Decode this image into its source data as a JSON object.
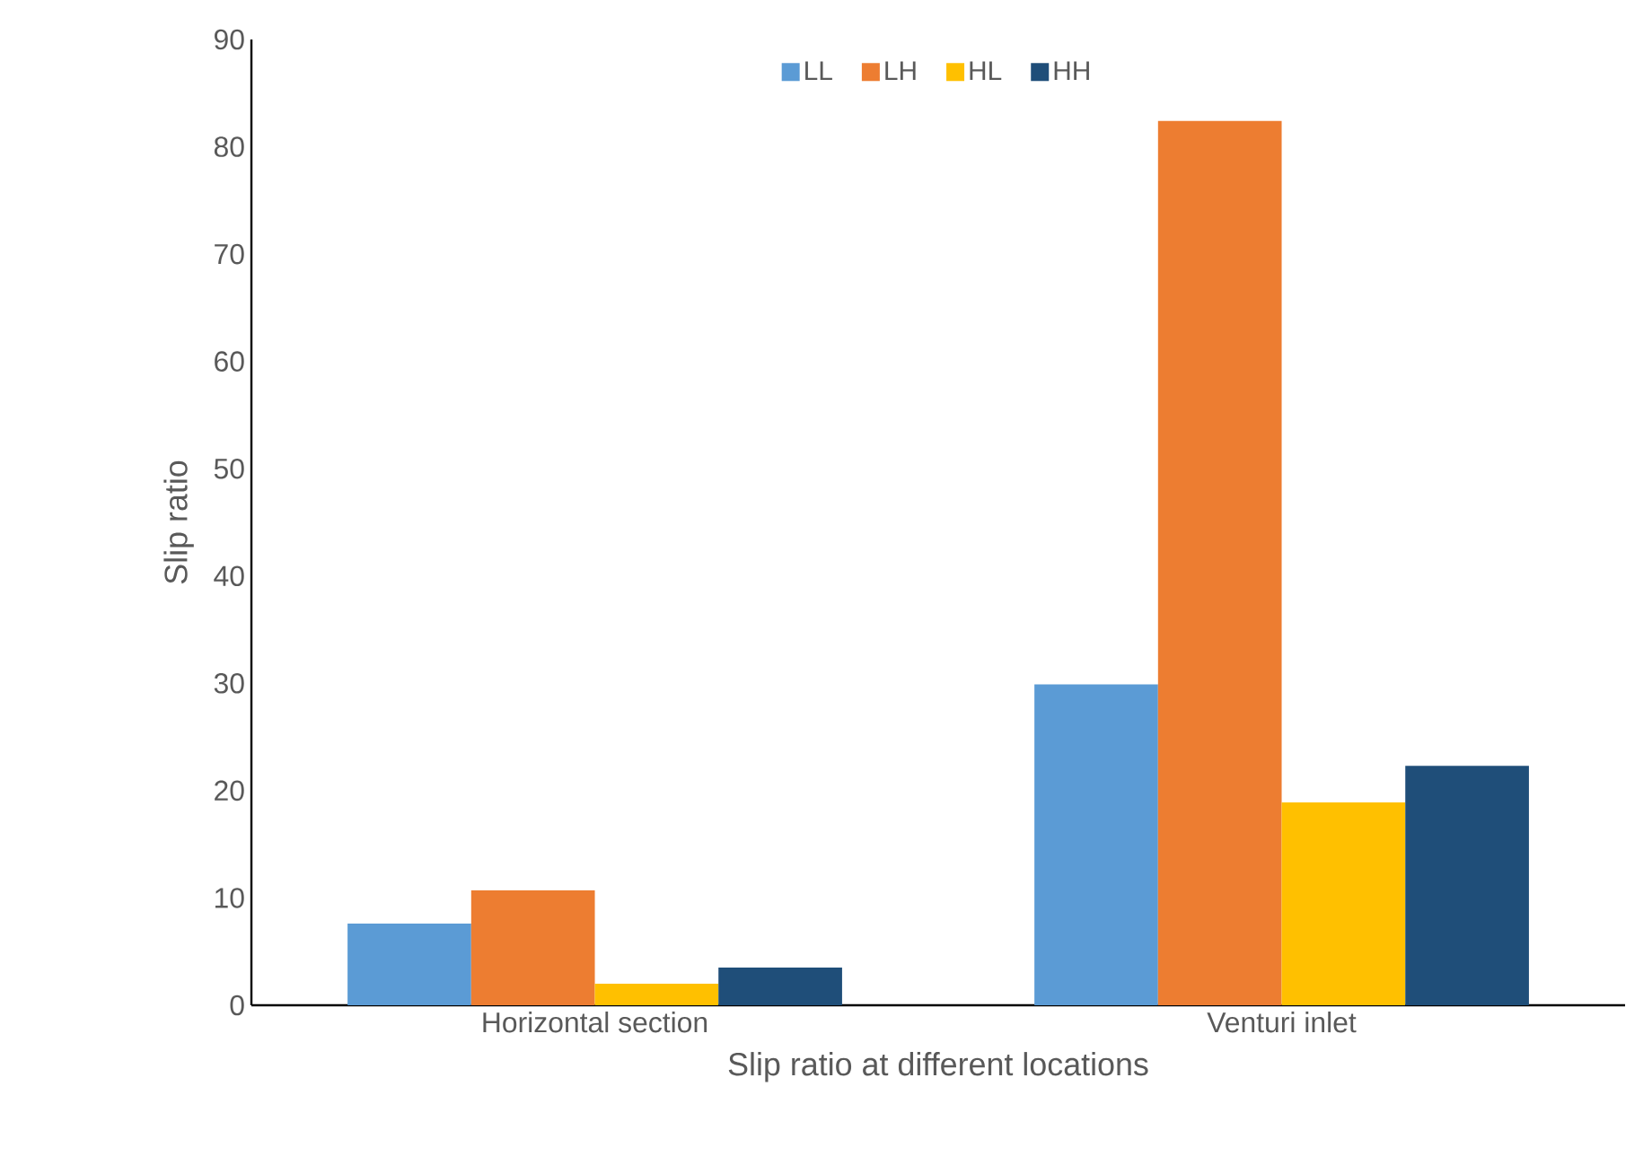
{
  "chart_data": {
    "type": "bar",
    "xlabel": "Slip ratio at different locations",
    "ylabel": "Slip ratio",
    "categories": [
      "Horizontal section",
      "Venturi inlet"
    ],
    "series": [
      {
        "name": "LL",
        "color": "#5b9bd5",
        "values": [
          7.6,
          29.9
        ]
      },
      {
        "name": "LH",
        "color": "#ed7d31",
        "values": [
          10.7,
          82.4
        ]
      },
      {
        "name": "HL",
        "color": "#ffc000",
        "values": [
          2.0,
          18.9
        ]
      },
      {
        "name": "HH",
        "color": "#1f4e79",
        "values": [
          3.5,
          22.3
        ]
      }
    ],
    "ylim": [
      0,
      90
    ],
    "yticks": [
      0,
      10,
      20,
      30,
      40,
      50,
      60,
      70,
      80,
      90
    ],
    "legend": "top",
    "grid": false
  }
}
